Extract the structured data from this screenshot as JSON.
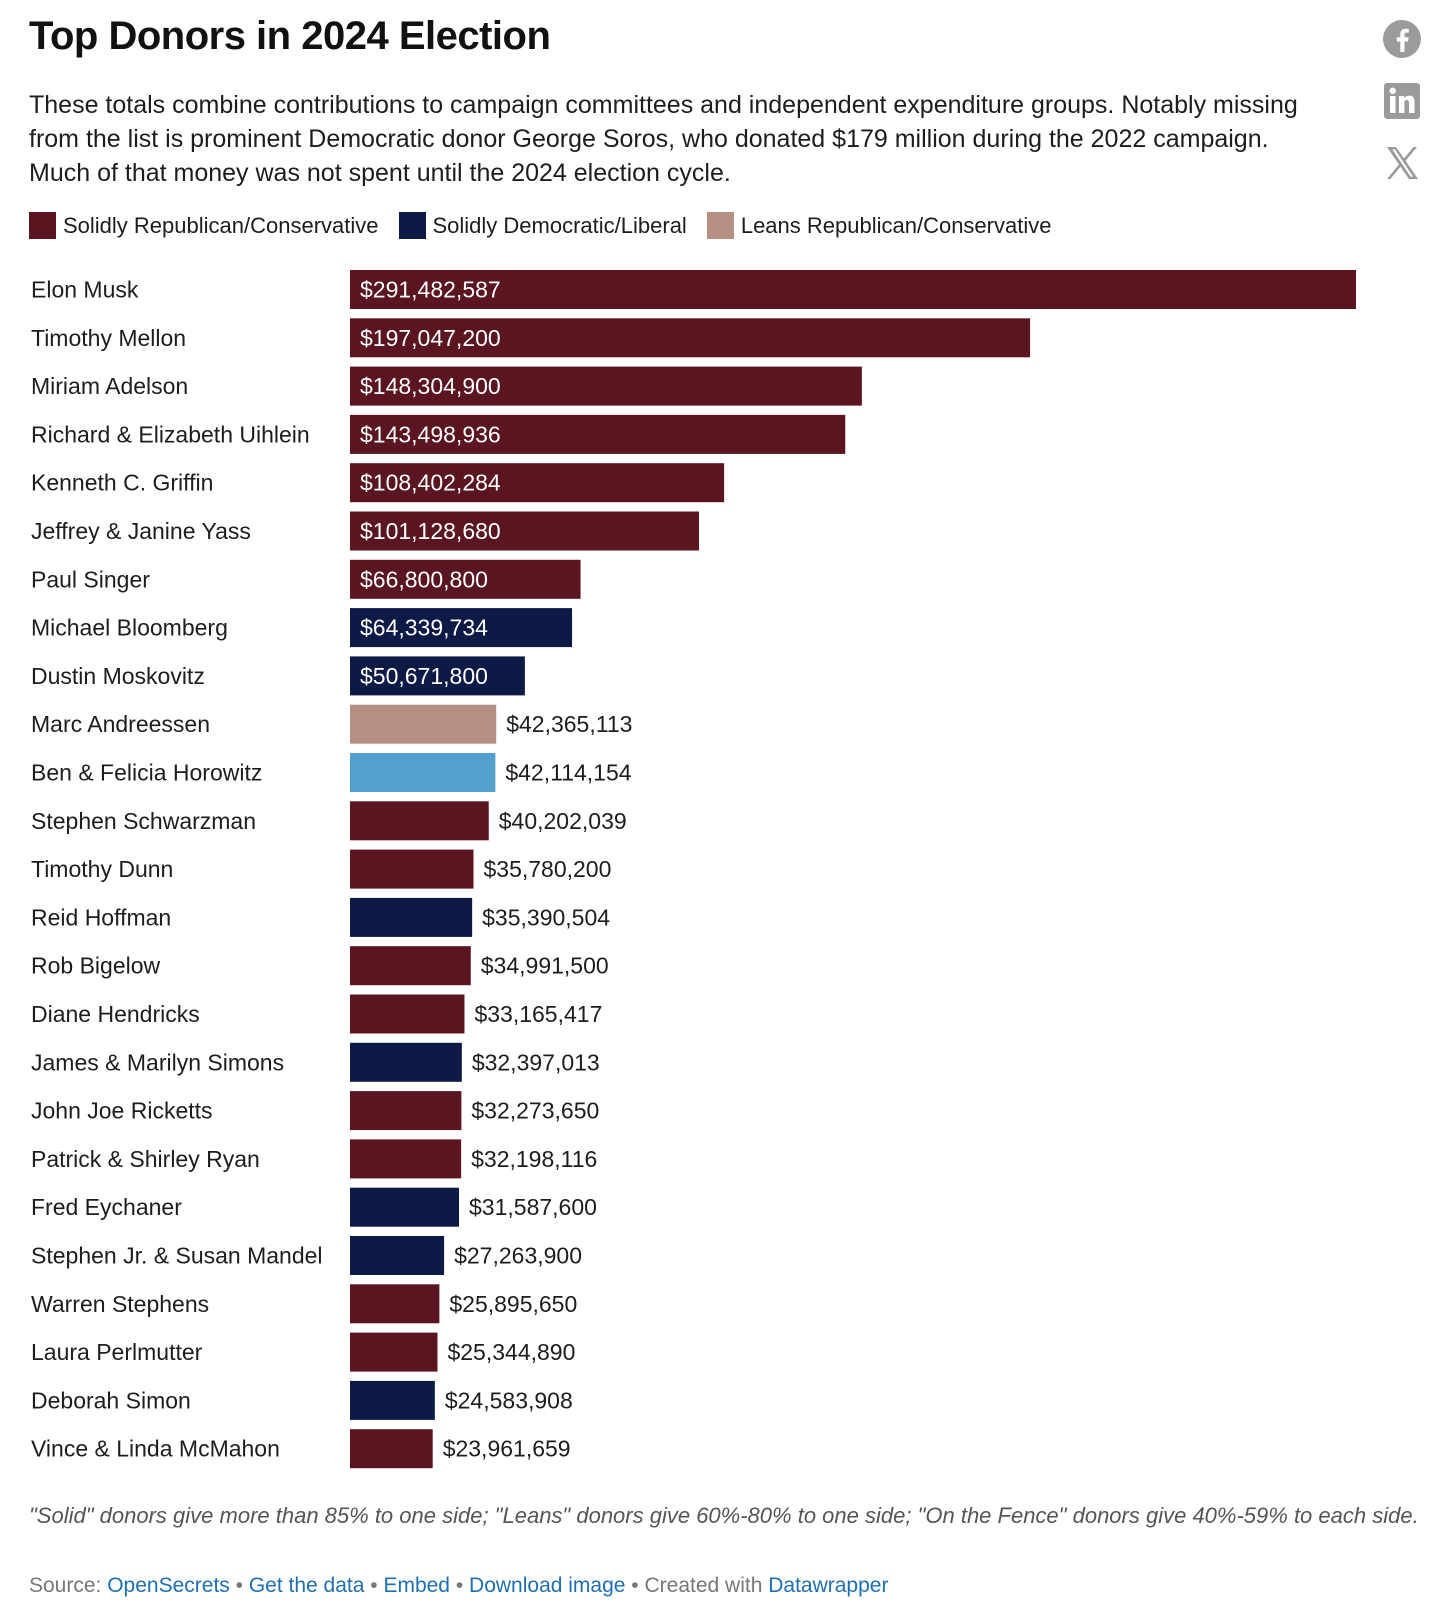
{
  "header": {
    "title": "Top Donors in 2024 Election",
    "description": "These totals combine contributions to campaign committees and independent expenditure groups. Notably missing from the list is prominent Democratic donor George Soros, who donated $179 million during the 2022 campaign. Much of that money was not spent until the 2024 election cycle."
  },
  "share": {
    "facebook_icon": "facebook-icon",
    "linkedin_icon": "linkedin-icon",
    "x_icon": "x-icon",
    "icon_color": "#999999"
  },
  "legend": {
    "items": [
      {
        "label": "Solidly Republican/Conservative",
        "color": "#5a1521"
      },
      {
        "label": "Solidly Democratic/Liberal",
        "color": "#0d1a45"
      },
      {
        "label": "Leans Republican/Conservative",
        "color": "#b68f83"
      }
    ]
  },
  "chart_data": {
    "type": "bar",
    "orientation": "horizontal",
    "xlim": [
      0,
      291482587
    ],
    "grid": false,
    "legend_position": "top-left",
    "categories": [
      "Elon Musk",
      "Timothy Mellon",
      "Miriam Adelson",
      "Richard & Elizabeth Uihlein",
      "Kenneth C. Griffin",
      "Jeffrey & Janine Yass",
      "Paul Singer",
      "Michael Bloomberg",
      "Dustin Moskovitz",
      "Marc Andreessen",
      "Ben & Felicia Horowitz",
      "Stephen Schwarzman",
      "Timothy Dunn",
      "Reid Hoffman",
      "Rob Bigelow",
      "Diane Hendricks",
      "James & Marilyn Simons",
      "John Joe Ricketts",
      "Patrick & Shirley Ryan",
      "Fred Eychaner",
      "Stephen Jr. & Susan Mandel",
      "Warren Stephens",
      "Laura Perlmutter",
      "Deborah Simon",
      "Vince & Linda McMahon"
    ],
    "values": [
      291482587,
      197047200,
      148304900,
      143498936,
      108402284,
      101128680,
      66800800,
      64339734,
      50671800,
      42365113,
      42114154,
      40202039,
      35780200,
      35390504,
      34991500,
      33165417,
      32397013,
      32273650,
      32198116,
      31587600,
      27263900,
      25895650,
      25344890,
      24583908,
      23961659
    ],
    "value_labels": [
      "$291,482,587",
      "$197,047,200",
      "$148,304,900",
      "$143,498,936",
      "$108,402,284",
      "$101,128,680",
      "$66,800,800",
      "$64,339,734",
      "$50,671,800",
      "$42,365,113",
      "$42,114,154",
      "$40,202,039",
      "$35,780,200",
      "$35,390,504",
      "$34,991,500",
      "$33,165,417",
      "$32,397,013",
      "$32,273,650",
      "$32,198,116",
      "$31,587,600",
      "$27,263,900",
      "$25,895,650",
      "$25,344,890",
      "$24,583,908",
      "$23,961,659"
    ],
    "colors": [
      "#5a1521",
      "#5a1521",
      "#5a1521",
      "#5a1521",
      "#5a1521",
      "#5a1521",
      "#5a1521",
      "#0d1a45",
      "#0d1a45",
      "#b68f83",
      "#52a0cb",
      "#5a1521",
      "#5a1521",
      "#0d1a45",
      "#5a1521",
      "#5a1521",
      "#0d1a45",
      "#5a1521",
      "#5a1521",
      "#0d1a45",
      "#0d1a45",
      "#5a1521",
      "#5a1521",
      "#0d1a45",
      "#5a1521"
    ]
  },
  "notes": "\"Solid\" donors give more than 85% to one side; \"Leans\" donors give 60%-80% to one side; \"On the Fence\" donors give 40%-59% to each side.",
  "footer": {
    "source_prefix": "Source: ",
    "source_link": "OpenSecrets",
    "separator": " • ",
    "get_data": "Get the data",
    "embed": "Embed",
    "download": "Download image",
    "created_with": "Created with ",
    "datawrapper": "Datawrapper"
  }
}
